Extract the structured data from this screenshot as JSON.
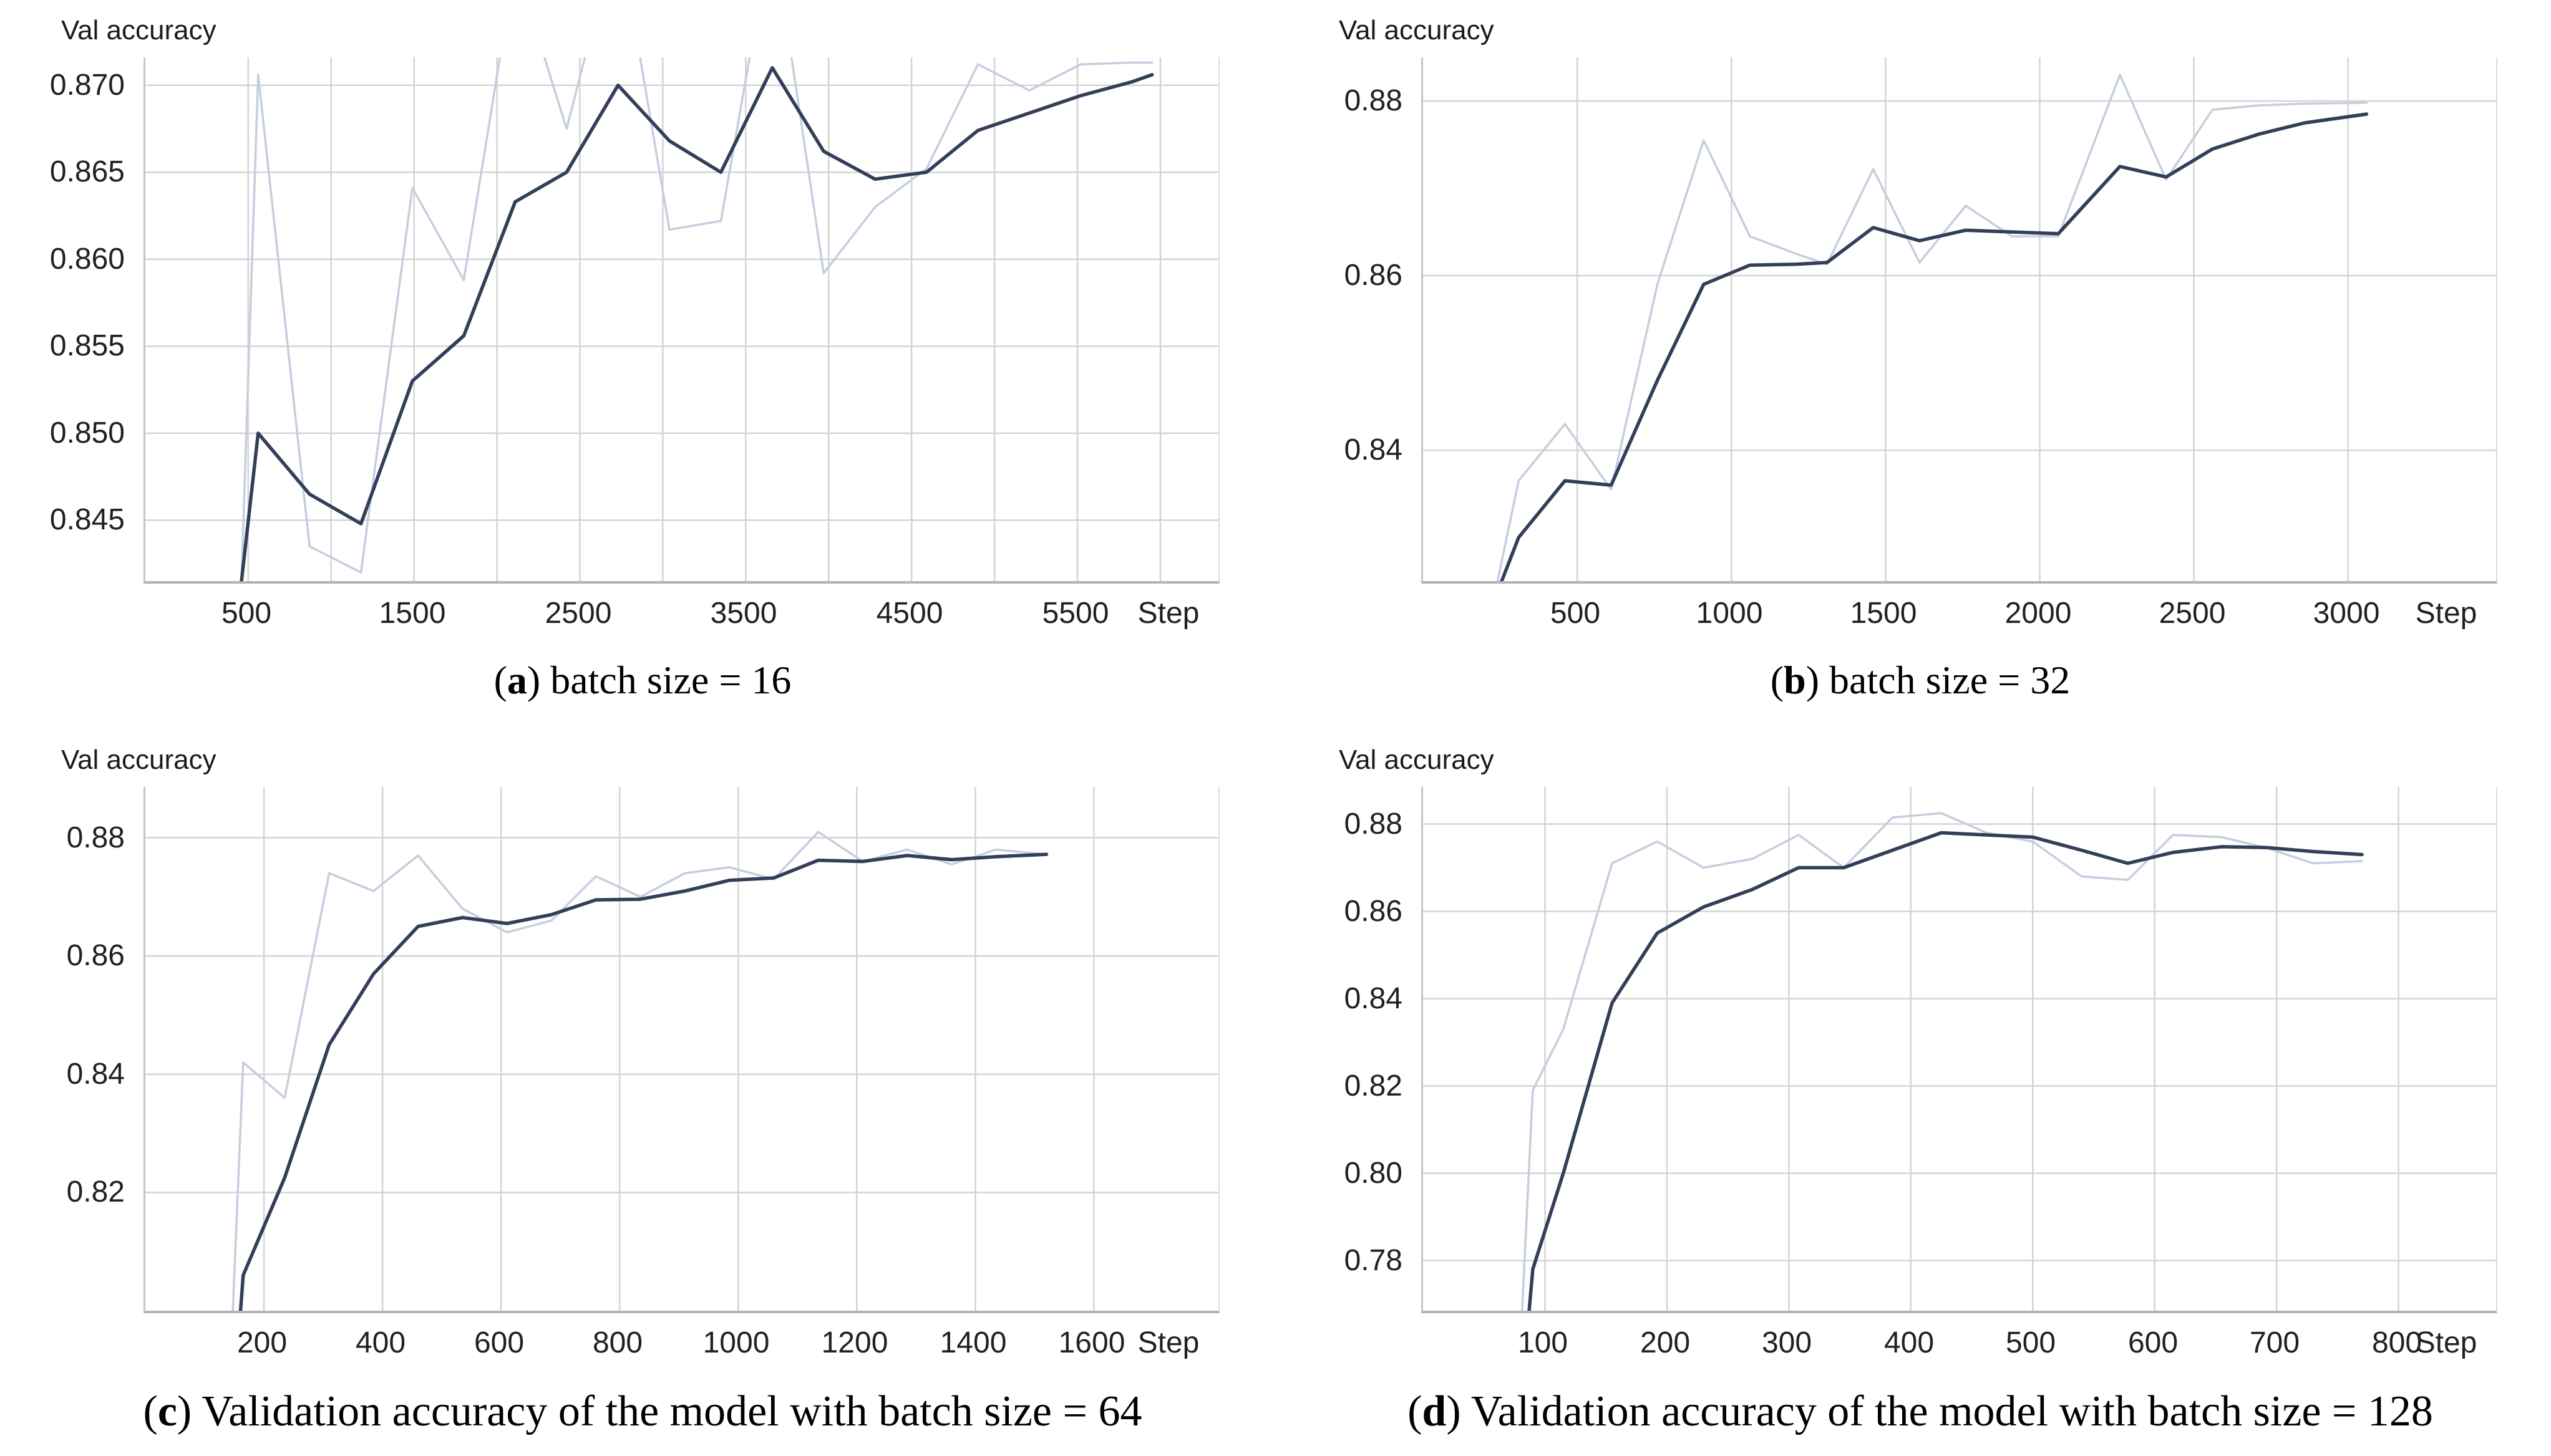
{
  "colors": {
    "background": "#ffffff",
    "raw_line": "#c5cede",
    "smooth_line": "#333e58",
    "gridline": "#d4d4d4",
    "axis": "#b3b3b3",
    "tick_text": "#212121",
    "caption_text": "#000000"
  },
  "chart_data": [
    {
      "id": "a",
      "type": "line",
      "title": "Val accuracy",
      "caption_open": "(",
      "caption_letter": "a",
      "caption_close": ") ",
      "caption_text": "batch size = 16",
      "step_label": "Step",
      "xlabel": "Step",
      "ylabel": "Val accuracy",
      "xlim": [
        -120,
        6350
      ],
      "ylim": [
        0.8415,
        0.8716
      ],
      "xticks": [
        500,
        1500,
        2500,
        3500,
        4500,
        5500
      ],
      "xtick_labels": [
        "500",
        "1500",
        "2500",
        "3500",
        "4500",
        "5500"
      ],
      "vgrid": [
        500,
        1000,
        1500,
        2000,
        2500,
        3000,
        3500,
        4000,
        4500,
        5000,
        5500,
        6000
      ],
      "yticks": [
        0.845,
        0.85,
        0.855,
        0.86,
        0.865,
        0.87
      ],
      "ytick_labels": [
        "0.845",
        "0.850",
        "0.855",
        "0.860",
        "0.865",
        "0.870"
      ],
      "legend": "none",
      "grid": "on",
      "x": [
        430,
        560,
        870,
        1180,
        1490,
        1800,
        2110,
        2420,
        2730,
        3040,
        3350,
        3660,
        3970,
        4280,
        4590,
        4900,
        5210,
        5520,
        5830,
        5950
      ],
      "series": [
        {
          "name": "raw",
          "values": [
            0.833,
            0.8706,
            0.8435,
            0.842,
            0.8641,
            0.8588,
            0.877,
            0.8675,
            0.879,
            0.8617,
            0.8622,
            0.879,
            0.8592,
            0.863,
            0.8652,
            0.8712,
            0.8697,
            0.8712,
            0.8713,
            0.8713
          ]
        },
        {
          "name": "smoothed",
          "values": [
            0.839,
            0.85,
            0.8465,
            0.8448,
            0.853,
            0.8556,
            0.8633,
            0.865,
            0.87,
            0.8668,
            0.865,
            0.871,
            0.8662,
            0.8646,
            0.865,
            0.8674,
            0.8684,
            0.8694,
            0.8702,
            0.8706
          ]
        }
      ]
    },
    {
      "id": "b",
      "type": "line",
      "title": "Val accuracy",
      "caption_open": "(",
      "caption_letter": "b",
      "caption_close": ") ",
      "caption_text": "batch size = 32",
      "step_label": "Step",
      "xlabel": "Step",
      "ylabel": "Val accuracy",
      "xlim": [
        0,
        3480
      ],
      "ylim": [
        0.825,
        0.885
      ],
      "xticks": [
        500,
        1000,
        1500,
        2000,
        2500,
        3000
      ],
      "xtick_labels": [
        "500",
        "1000",
        "1500",
        "2000",
        "2500",
        "3000"
      ],
      "vgrid": [
        500,
        1000,
        1500,
        2000,
        2500,
        3000
      ],
      "yticks": [
        0.84,
        0.86,
        0.88
      ],
      "ytick_labels": [
        "0.84",
        "0.86",
        "0.88"
      ],
      "legend": "none",
      "grid": "on",
      "x": [
        200,
        310,
        460,
        610,
        760,
        910,
        1060,
        1210,
        1310,
        1460,
        1610,
        1760,
        1910,
        2060,
        2260,
        2410,
        2560,
        2710,
        2860,
        3060
      ],
      "series": [
        {
          "name": "raw",
          "values": [
            0.818,
            0.8365,
            0.843,
            0.8355,
            0.859,
            0.8755,
            0.8645,
            0.8625,
            0.8613,
            0.8722,
            0.8615,
            0.868,
            0.8645,
            0.8645,
            0.883,
            0.871,
            0.879,
            0.8795,
            0.8797,
            0.8798
          ]
        },
        {
          "name": "smoothed",
          "values": [
            0.82,
            0.83,
            0.8365,
            0.836,
            0.848,
            0.859,
            0.8612,
            0.8613,
            0.8615,
            0.8655,
            0.864,
            0.8652,
            0.865,
            0.8648,
            0.8725,
            0.8713,
            0.8745,
            0.8762,
            0.8775,
            0.8785
          ]
        }
      ]
    },
    {
      "id": "c",
      "type": "line",
      "title": "Val accuracy",
      "caption_open": "(",
      "caption_letter": "c",
      "caption_close": ") ",
      "caption_text": "Validation accuracy of the model with batch size = 64",
      "step_label": "Step",
      "xlabel": "Step",
      "ylabel": "Val accuracy",
      "xlim": [
        0,
        1810
      ],
      "ylim": [
        0.8,
        0.8886
      ],
      "xticks": [
        200,
        400,
        600,
        800,
        1000,
        1200,
        1400,
        1600
      ],
      "xtick_labels": [
        "200",
        "400",
        "600",
        "800",
        "1000",
        "1200",
        "1400",
        "1600"
      ],
      "vgrid": [
        200,
        400,
        600,
        800,
        1000,
        1200,
        1400,
        1600
      ],
      "yticks": [
        0.82,
        0.84,
        0.86,
        0.88
      ],
      "ytick_labels": [
        "0.82",
        "0.84",
        "0.86",
        "0.88"
      ],
      "legend": "none",
      "grid": "on",
      "x": [
        145,
        165,
        235,
        310,
        385,
        460,
        535,
        610,
        685,
        760,
        835,
        910,
        985,
        1060,
        1135,
        1210,
        1285,
        1360,
        1435,
        1520
      ],
      "series": [
        {
          "name": "raw",
          "values": [
            0.794,
            0.842,
            0.836,
            0.874,
            0.871,
            0.877,
            0.868,
            0.864,
            0.866,
            0.8735,
            0.87,
            0.874,
            0.875,
            0.873,
            0.881,
            0.876,
            0.878,
            0.8755,
            0.878,
            0.8772
          ]
        },
        {
          "name": "smoothed",
          "values": [
            0.779,
            0.806,
            0.8225,
            0.845,
            0.857,
            0.865,
            0.8665,
            0.8655,
            0.867,
            0.8695,
            0.8696,
            0.871,
            0.8728,
            0.8732,
            0.8762,
            0.876,
            0.877,
            0.8763,
            0.8768,
            0.8772
          ]
        }
      ]
    },
    {
      "id": "d",
      "type": "line",
      "title": "Val accuracy",
      "caption_open": "(",
      "caption_letter": "d",
      "caption_close": ") ",
      "caption_text": "Validation accuracy of the model with batch size = 128",
      "step_label": "Step",
      "xlabel": "Step",
      "ylabel": "Val accuracy",
      "xlim": [
        0,
        880
      ],
      "ylim": [
        0.7685,
        0.8885
      ],
      "xticks": [
        100,
        200,
        300,
        400,
        500,
        600,
        700,
        800
      ],
      "xtick_labels": [
        "100",
        "200",
        "300",
        "400",
        "500",
        "600",
        "700",
        "800"
      ],
      "vgrid": [
        100,
        200,
        300,
        400,
        500,
        600,
        700,
        800
      ],
      "yticks": [
        0.78,
        0.8,
        0.82,
        0.84,
        0.86,
        0.88
      ],
      "ytick_labels": [
        "0.78",
        "0.80",
        "0.82",
        "0.84",
        "0.86",
        "0.88"
      ],
      "legend": "none",
      "grid": "on",
      "x": [
        78,
        90,
        115,
        155,
        192,
        230,
        270,
        308,
        345,
        385,
        425,
        462,
        500,
        540,
        578,
        615,
        655,
        692,
        730,
        770
      ],
      "series": [
        {
          "name": "raw",
          "values": [
            0.75,
            0.819,
            0.833,
            0.871,
            0.876,
            0.87,
            0.872,
            0.8775,
            0.87,
            0.8815,
            0.8825,
            0.878,
            0.876,
            0.868,
            0.8672,
            0.8775,
            0.877,
            0.8745,
            0.871,
            0.8715
          ]
        },
        {
          "name": "smoothed",
          "values": [
            0.74,
            0.778,
            0.8,
            0.839,
            0.855,
            0.861,
            0.865,
            0.87,
            0.87,
            0.874,
            0.878,
            0.8775,
            0.877,
            0.874,
            0.871,
            0.8735,
            0.8748,
            0.8746,
            0.8737,
            0.873
          ]
        }
      ]
    }
  ]
}
